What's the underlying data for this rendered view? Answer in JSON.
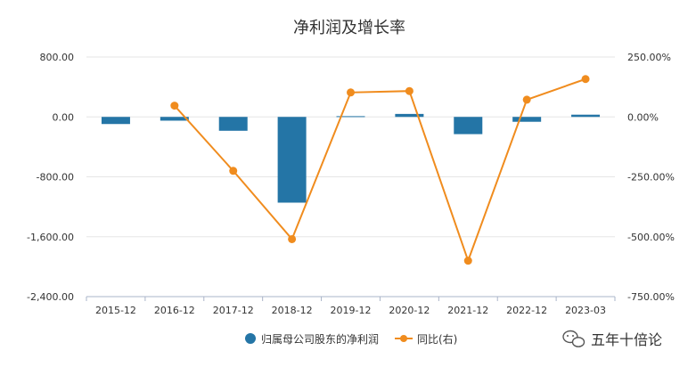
{
  "chart_data": {
    "type": "bar+line",
    "title": "净利润及增长率",
    "categories": [
      "2015-12",
      "2016-12",
      "2017-12",
      "2018-12",
      "2019-12",
      "2020-12",
      "2021-12",
      "2022-12",
      "2023-03"
    ],
    "y_left": {
      "ticks": [
        800,
        0,
        -800,
        -1600,
        -2400
      ],
      "tick_labels": [
        "800.00",
        "0.00",
        "-800.00",
        "-1,600.00",
        "-2,400.00"
      ],
      "range": [
        -2400,
        800
      ]
    },
    "y_right": {
      "ticks": [
        250,
        0,
        -250,
        -500,
        -750
      ],
      "tick_labels": [
        "250.00%",
        "0.00%",
        "-250.00%",
        "-500.00%",
        "-750.00%"
      ],
      "range": [
        -750,
        250
      ]
    },
    "series": [
      {
        "name": "归属母公司股东的净利润",
        "type": "bar",
        "axis": "left",
        "color": "#2475a6",
        "values": [
          -95,
          -50,
          -185,
          -1145,
          10,
          40,
          -230,
          -65,
          30
        ]
      },
      {
        "name": "同比(右)",
        "type": "line",
        "axis": "right",
        "color": "#f08c1e",
        "values": [
          null,
          47,
          -225,
          -510,
          102,
          108,
          -600,
          72,
          158
        ]
      }
    ],
    "legend": {
      "position": "bottom-center",
      "items": [
        "归属母公司股东的净利润",
        "同比(右)"
      ]
    },
    "grid": true
  },
  "watermark": {
    "text": "五年十倍论"
  }
}
